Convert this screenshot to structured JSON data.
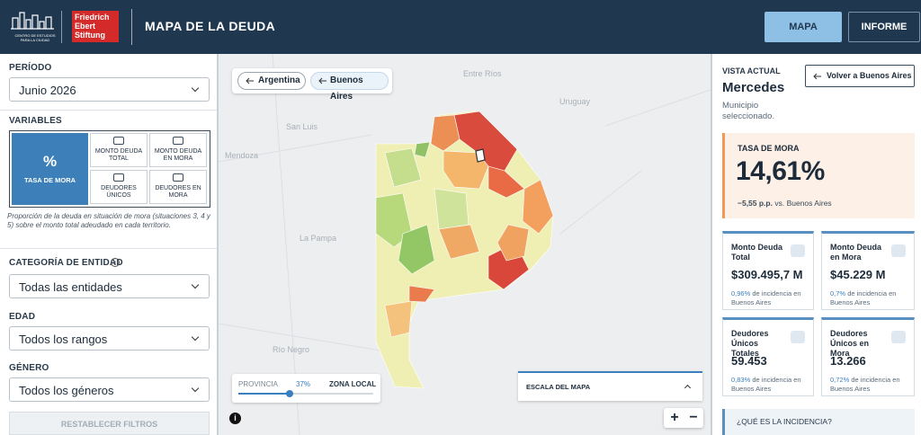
{
  "header": {
    "logo_small": "CENTRO DE ESTUDIOS PARA LA CIUDAD",
    "logo_brand": [
      "Friedrich",
      "Ebert",
      "Stiftung"
    ],
    "title": "MAPA DE LA DEUDA",
    "tabs": [
      "MAPA",
      "INFORME"
    ]
  },
  "sidebar": {
    "periodo_label": "PERÍODO",
    "periodo": "Junio 2026",
    "variables_label": "VARIABLES",
    "selected_icon": "%",
    "variables": [
      "TASA DE MORA",
      "MONTO DEUDA TOTAL",
      "MONTO DEUDA EN MORA",
      "DEUDORES ÚNICOS",
      "DEUDORES EN MORA"
    ],
    "description": "Proporción de la deuda en situación de mora (situaciones 3, 4 y 5) sobre el monto total adeudado en cada territorio.",
    "info_icon": "i",
    "filters": [
      {
        "label": "CATEGORÍA DE ENTIDAD",
        "value": "Todas las entidades"
      },
      {
        "label": "EDAD",
        "value": "Todos los rangos"
      },
      {
        "label": "GÉNERO",
        "value": "Todos los géneros"
      }
    ],
    "reset": "RESTABLECER FILTROS"
  },
  "map": {
    "breadcrumbs": [
      "Argentina",
      "Buenos Aires"
    ],
    "places": [
      "San Luis",
      "Mendoza",
      "La Pampa",
      "Río Negro",
      "Entre Ríos",
      "Uruguay"
    ],
    "slider": {
      "left": "PROVINCIA",
      "value": "37%",
      "right": "ZONA LOCAL"
    },
    "scale_label": "ESCALA DEL MAPA",
    "info": "i",
    "zoom": [
      "+",
      "−"
    ]
  },
  "panel": {
    "vista": "VISTA ACTUAL",
    "back": "Volver a Buenos Aires",
    "name": "Mercedes",
    "subtitle": "Municipio seleccionado.",
    "rate_label": "TASA DE MORA",
    "rate": "14,61%",
    "rate_delta": "−5,55 p.p.",
    "rate_compare": "vs. Buenos Aires",
    "cards": [
      {
        "label": "Monto Deuda Total",
        "value": "$309.495,7 M",
        "pct": "0,96%",
        "note": "de incidencia en Buenos Aires"
      },
      {
        "label": "Monto Deuda en Mora",
        "value": "$45.229 M",
        "pct": "0,7%",
        "note": "de incidencia en Buenos Aires"
      },
      {
        "label": "Deudores Únicos Totales",
        "value": "59.453",
        "pct": "0,83%",
        "note": "de incidencia en Buenos Aires"
      },
      {
        "label": "Deudores Únicos en Mora",
        "value": "13.266",
        "pct": "0,72%",
        "note": "de incidencia en Buenos Aires"
      }
    ],
    "faq": "¿QUÉ ES LA INCIDENCIA?"
  }
}
